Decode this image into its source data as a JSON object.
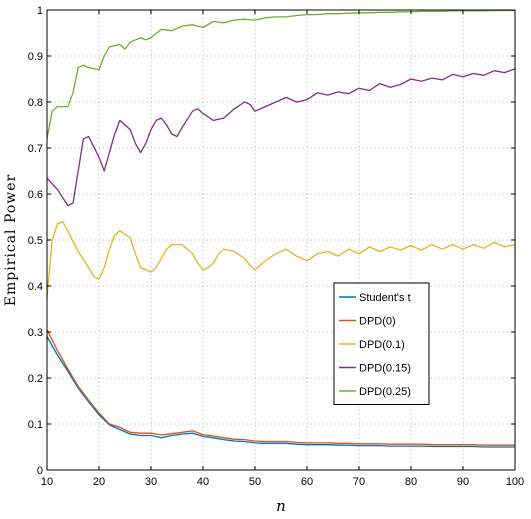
{
  "chart_data": {
    "type": "line",
    "xlabel": "n",
    "ylabel": "Empirical Power",
    "xlim": [
      10,
      100
    ],
    "ylim": [
      0,
      1
    ],
    "xticks": [
      "10",
      "20",
      "30",
      "40",
      "50",
      "60",
      "70",
      "80",
      "90",
      "100"
    ],
    "yticks": [
      "0",
      "0.1",
      "0.2",
      "0.3",
      "0.4",
      "0.5",
      "0.6",
      "0.7",
      "0.8",
      "0.9",
      "1"
    ],
    "grid": true,
    "legend_position": "center-right",
    "series": [
      {
        "name": "Student's t",
        "color": "#0072bd",
        "x": [
          10,
          12,
          14,
          16,
          18,
          20,
          22,
          24,
          26,
          28,
          30,
          32,
          34,
          36,
          38,
          40,
          42,
          44,
          46,
          48,
          50,
          52,
          54,
          56,
          58,
          60,
          62,
          64,
          66,
          68,
          70,
          72,
          74,
          76,
          78,
          80,
          82,
          84,
          86,
          88,
          90,
          92,
          94,
          96,
          98,
          100
        ],
        "y": [
          0.29,
          0.25,
          0.215,
          0.178,
          0.148,
          0.12,
          0.098,
          0.088,
          0.078,
          0.075,
          0.075,
          0.07,
          0.075,
          0.078,
          0.08,
          0.073,
          0.07,
          0.066,
          0.063,
          0.062,
          0.059,
          0.058,
          0.058,
          0.058,
          0.056,
          0.055,
          0.055,
          0.055,
          0.054,
          0.054,
          0.053,
          0.053,
          0.053,
          0.052,
          0.052,
          0.052,
          0.052,
          0.051,
          0.051,
          0.051,
          0.051,
          0.051,
          0.05,
          0.05,
          0.05,
          0.05
        ]
      },
      {
        "name": "DPD(0)",
        "color": "#d95319",
        "x": [
          10,
          12,
          14,
          16,
          18,
          20,
          22,
          24,
          26,
          28,
          30,
          32,
          34,
          36,
          38,
          40,
          42,
          44,
          46,
          48,
          50,
          52,
          54,
          56,
          58,
          60,
          62,
          64,
          66,
          68,
          70,
          72,
          74,
          76,
          78,
          80,
          82,
          84,
          86,
          88,
          90,
          92,
          94,
          96,
          98,
          100
        ],
        "y": [
          0.305,
          0.26,
          0.22,
          0.182,
          0.152,
          0.124,
          0.1,
          0.093,
          0.082,
          0.08,
          0.08,
          0.076,
          0.079,
          0.082,
          0.085,
          0.077,
          0.074,
          0.07,
          0.067,
          0.066,
          0.063,
          0.062,
          0.062,
          0.062,
          0.06,
          0.059,
          0.059,
          0.059,
          0.058,
          0.058,
          0.057,
          0.057,
          0.057,
          0.056,
          0.056,
          0.056,
          0.056,
          0.055,
          0.055,
          0.055,
          0.055,
          0.055,
          0.054,
          0.054,
          0.054,
          0.054
        ]
      },
      {
        "name": "DPD(0.1)",
        "color": "#edb120",
        "x": [
          10,
          11,
          12,
          13,
          14,
          16,
          18,
          19,
          20,
          21,
          22,
          23,
          24,
          26,
          27,
          28,
          29,
          30,
          31,
          32,
          33,
          34,
          36,
          38,
          39,
          40,
          41,
          42,
          43,
          44,
          46,
          48,
          49,
          50,
          52,
          54,
          56,
          58,
          60,
          62,
          64,
          66,
          68,
          70,
          72,
          74,
          76,
          78,
          80,
          82,
          84,
          86,
          88,
          90,
          92,
          94,
          96,
          98,
          100
        ],
        "y": [
          0.375,
          0.5,
          0.535,
          0.54,
          0.52,
          0.475,
          0.44,
          0.42,
          0.415,
          0.44,
          0.48,
          0.51,
          0.52,
          0.505,
          0.47,
          0.44,
          0.435,
          0.43,
          0.44,
          0.46,
          0.48,
          0.49,
          0.49,
          0.47,
          0.45,
          0.435,
          0.44,
          0.45,
          0.47,
          0.48,
          0.475,
          0.46,
          0.445,
          0.435,
          0.455,
          0.47,
          0.48,
          0.465,
          0.455,
          0.47,
          0.475,
          0.465,
          0.48,
          0.47,
          0.485,
          0.475,
          0.485,
          0.478,
          0.488,
          0.478,
          0.49,
          0.48,
          0.49,
          0.48,
          0.49,
          0.482,
          0.495,
          0.485,
          0.49
        ]
      },
      {
        "name": "DPD(0.15)",
        "color": "#7e2f8e",
        "x": [
          10,
          12,
          14,
          15,
          16,
          17,
          18,
          20,
          21,
          22,
          23,
          24,
          26,
          27,
          28,
          29,
          30,
          31,
          32,
          33,
          34,
          35,
          36,
          38,
          39,
          40,
          42,
          44,
          46,
          48,
          49,
          50,
          52,
          54,
          56,
          58,
          60,
          62,
          64,
          66,
          68,
          70,
          72,
          74,
          76,
          78,
          80,
          82,
          84,
          86,
          88,
          90,
          92,
          94,
          96,
          98,
          100
        ],
        "y": [
          0.635,
          0.61,
          0.575,
          0.58,
          0.65,
          0.72,
          0.725,
          0.68,
          0.65,
          0.69,
          0.73,
          0.76,
          0.74,
          0.71,
          0.69,
          0.71,
          0.74,
          0.76,
          0.765,
          0.75,
          0.73,
          0.725,
          0.745,
          0.78,
          0.785,
          0.775,
          0.76,
          0.765,
          0.785,
          0.8,
          0.795,
          0.78,
          0.79,
          0.8,
          0.81,
          0.8,
          0.805,
          0.82,
          0.815,
          0.822,
          0.818,
          0.83,
          0.825,
          0.84,
          0.832,
          0.838,
          0.85,
          0.845,
          0.852,
          0.848,
          0.86,
          0.855,
          0.862,
          0.858,
          0.868,
          0.864,
          0.872
        ]
      },
      {
        "name": "DPD(0.25)",
        "color": "#77ac30",
        "x": [
          10,
          11,
          12,
          14,
          15,
          16,
          17,
          18,
          20,
          21,
          22,
          24,
          25,
          26,
          28,
          29,
          30,
          32,
          34,
          36,
          38,
          40,
          42,
          44,
          46,
          48,
          50,
          52,
          54,
          56,
          58,
          60,
          62,
          64,
          66,
          68,
          70,
          72,
          74,
          76,
          78,
          80,
          82,
          84,
          86,
          88,
          90,
          92,
          94,
          96,
          98,
          100
        ],
        "y": [
          0.72,
          0.78,
          0.79,
          0.79,
          0.82,
          0.875,
          0.88,
          0.875,
          0.87,
          0.9,
          0.92,
          0.925,
          0.915,
          0.93,
          0.94,
          0.935,
          0.94,
          0.958,
          0.955,
          0.965,
          0.968,
          0.962,
          0.975,
          0.972,
          0.978,
          0.98,
          0.978,
          0.983,
          0.985,
          0.985,
          0.988,
          0.99,
          0.99,
          0.992,
          0.992,
          0.993,
          0.994,
          0.994,
          0.995,
          0.995,
          0.996,
          0.996,
          0.997,
          0.997,
          0.997,
          0.998,
          0.998,
          0.998,
          0.998,
          0.999,
          0.999,
          0.999
        ]
      }
    ]
  }
}
